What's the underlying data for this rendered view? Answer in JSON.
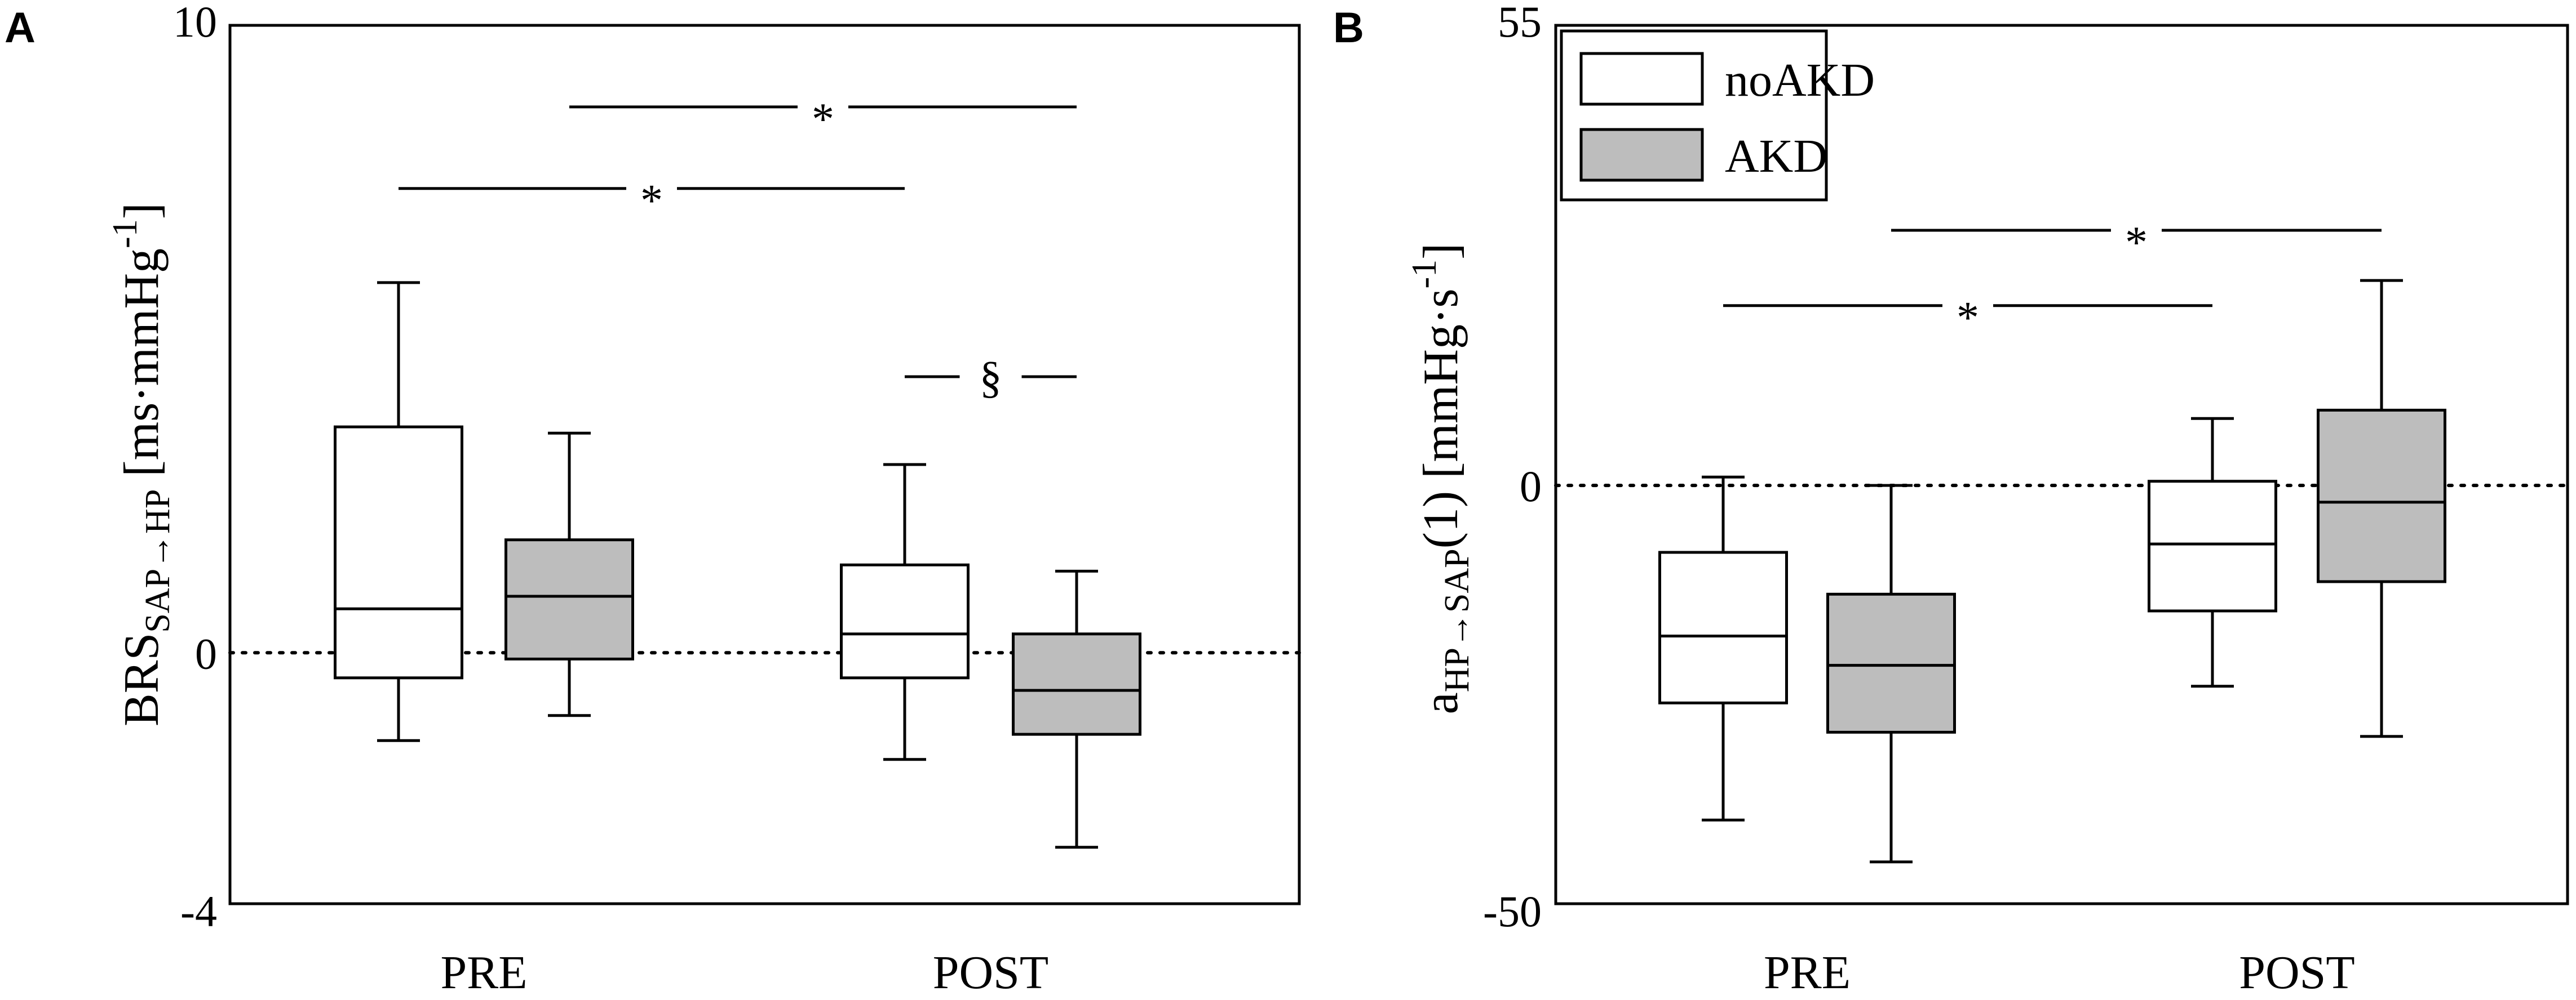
{
  "colors": {
    "noAKD": "#ffffff",
    "AKD": "#bdbdbd",
    "stroke": "#000000"
  },
  "chart_data": [
    {
      "panel": "A",
      "type": "box",
      "ylabel": {
        "main": "BRS",
        "sub": "SAP→HP",
        "rest_before": " [ms",
        "dot": "·",
        "rest_after": "mmHg",
        "sup": "-1",
        "close": "]"
      },
      "ylim": [
        -4,
        10
      ],
      "yticks": [
        "10",
        "0",
        "-4"
      ],
      "ytick_values": [
        10,
        0,
        -4
      ],
      "reference_line": 0,
      "categories": [
        "PRE",
        "POST"
      ],
      "series": [
        {
          "name": "noAKD",
          "boxes": [
            {
              "category": "PRE",
              "whisker_low": -1.4,
              "q1": -0.4,
              "median": 0.7,
              "q3": 3.6,
              "whisker_high": 5.9
            },
            {
              "category": "POST",
              "whisker_low": -1.7,
              "q1": -0.4,
              "median": 0.3,
              "q3": 1.4,
              "whisker_high": 3.0
            }
          ]
        },
        {
          "name": "AKD",
          "boxes": [
            {
              "category": "PRE",
              "whisker_low": -1.0,
              "q1": -0.1,
              "median": 0.9,
              "q3": 1.8,
              "whisker_high": 3.5
            },
            {
              "category": "POST",
              "whisker_low": -3.1,
              "q1": -1.3,
              "median": -0.6,
              "q3": 0.3,
              "whisker_high": 1.3
            }
          ]
        }
      ],
      "significance": [
        {
          "label": "*",
          "from": "PRE-noAKD",
          "to": "POST-noAKD",
          "y": 7.4
        },
        {
          "label": "*",
          "from": "PRE-AKD",
          "to": "POST-AKD",
          "y": 8.7
        },
        {
          "label": "§",
          "from": "POST-noAKD",
          "to": "POST-AKD",
          "y": 4.4
        }
      ]
    },
    {
      "panel": "B",
      "type": "box",
      "ylabel": {
        "main": "a",
        "sub": "HP→SAP",
        "rest_before": "(1) [mmHg",
        "dot": "·",
        "rest_after": "s",
        "sup": "-1",
        "close": "]"
      },
      "ylim": [
        -50,
        55
      ],
      "yticks": [
        "55",
        "0",
        "-50"
      ],
      "ytick_values": [
        55,
        0,
        -50
      ],
      "reference_line": 0,
      "categories": [
        "PRE",
        "POST"
      ],
      "legend": {
        "placement": "top-left",
        "entries": [
          "noAKD",
          "AKD"
        ]
      },
      "series": [
        {
          "name": "noAKD",
          "boxes": [
            {
              "category": "PRE",
              "whisker_low": -40,
              "q1": -26,
              "median": -18,
              "q3": -8,
              "whisker_high": 1
            },
            {
              "category": "POST",
              "whisker_low": -24,
              "q1": -15,
              "median": -7,
              "q3": 0.5,
              "whisker_high": 8
            }
          ]
        },
        {
          "name": "AKD",
          "boxes": [
            {
              "category": "PRE",
              "whisker_low": -45,
              "q1": -29.5,
              "median": -21.5,
              "q3": -13,
              "whisker_high": 0
            },
            {
              "category": "POST",
              "whisker_low": -30,
              "q1": -11.5,
              "median": -2,
              "q3": 9,
              "whisker_high": 24.5
            }
          ]
        }
      ],
      "significance": [
        {
          "label": "*",
          "from": "PRE-noAKD",
          "to": "POST-noAKD",
          "y": 21.5
        },
        {
          "label": "*",
          "from": "PRE-AKD",
          "to": "POST-AKD",
          "y": 30.5
        }
      ]
    }
  ]
}
